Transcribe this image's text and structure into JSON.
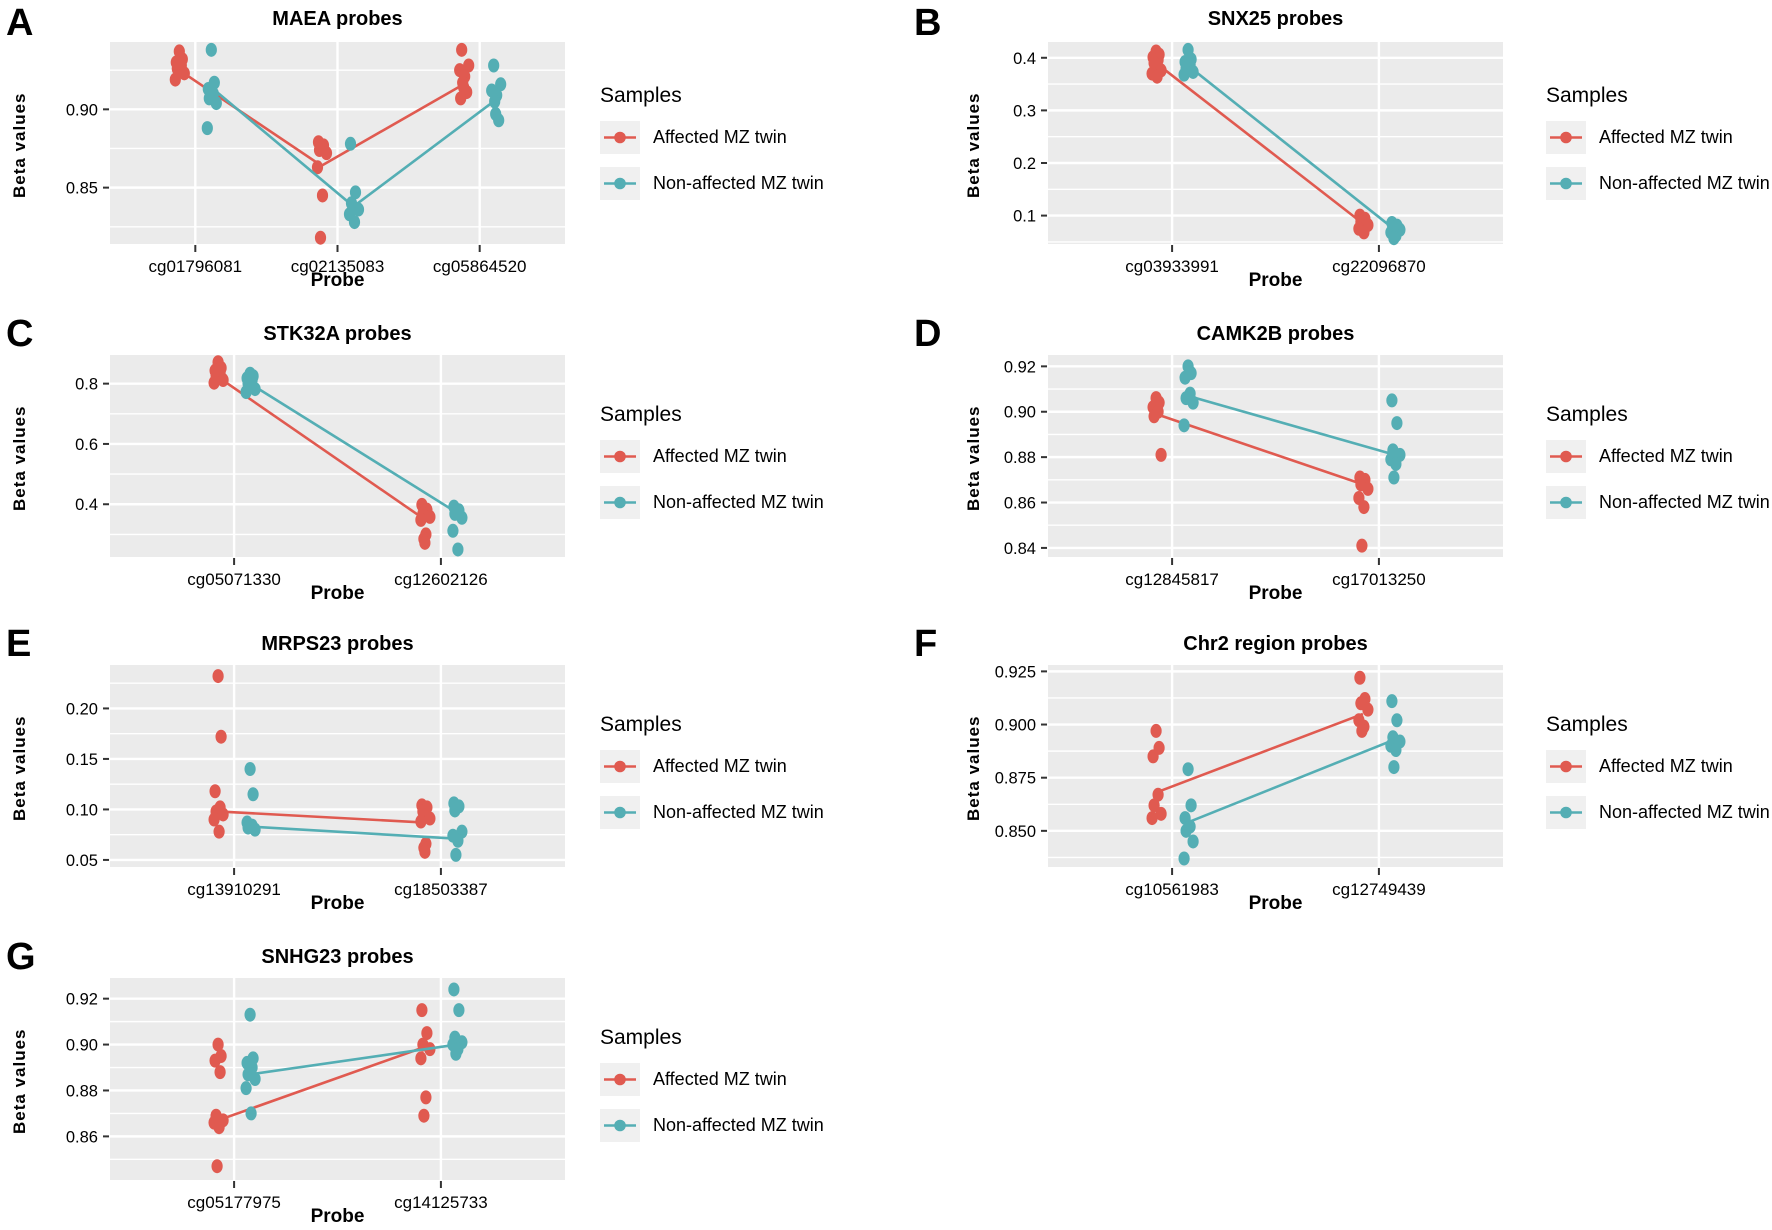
{
  "legend": {
    "title": "Samples",
    "entries": [
      {
        "label": "Affected MZ twin",
        "color": "#E05A50"
      },
      {
        "label": "Non-affected MZ twin",
        "color": "#54AEB4"
      }
    ]
  },
  "style_colors": {
    "plot_background": "#EBEBEB",
    "grid_line": "#FFFFFF",
    "legend_key_background": "#F0F0F0",
    "tick_mark": "#333333"
  },
  "chart_data": [
    {
      "panel_letter": "A",
      "title": "MAEA probes",
      "type": "scatter",
      "xlabel": "Probe",
      "ylabel": "Beta values",
      "legend_position": "right",
      "grid": true,
      "categories": [
        "cg01796081",
        "cg02135083",
        "cg05864520"
      ],
      "ylim": [
        0.814,
        0.943
      ],
      "yticks": [
        0.85,
        0.9
      ],
      "ytick_labels": [
        "0.85",
        "0.90"
      ],
      "series": [
        {
          "name": "Affected MZ twin",
          "color": "#E05A50",
          "points": [
            [
              0.937,
              0.932,
              0.93,
              0.928,
              0.926,
              0.923,
              0.919
            ],
            [
              0.879,
              0.877,
              0.874,
              0.872,
              0.863,
              0.845,
              0.818
            ],
            [
              0.938,
              0.928,
              0.925,
              0.921,
              0.917,
              0.914,
              0.911,
              0.907
            ]
          ],
          "line_means": [
            0.925,
            0.864,
            0.916
          ]
        },
        {
          "name": "Non-affected MZ twin",
          "color": "#54AEB4",
          "points": [
            [
              0.938,
              0.917,
              0.913,
              0.91,
              0.907,
              0.904,
              0.888
            ],
            [
              0.878,
              0.847,
              0.84,
              0.836,
              0.833,
              0.828
            ],
            [
              0.928,
              0.916,
              0.912,
              0.909,
              0.905,
              0.897,
              0.893
            ]
          ],
          "line_means": [
            0.914,
            0.838,
            0.906
          ]
        }
      ]
    },
    {
      "panel_letter": "B",
      "title": "SNX25 probes",
      "type": "scatter",
      "xlabel": "Probe",
      "ylabel": "Beta values",
      "legend_position": "right",
      "grid": true,
      "categories": [
        "cg03933991",
        "cg22096870"
      ],
      "ylim": [
        0.046,
        0.43
      ],
      "yticks": [
        0.1,
        0.2,
        0.3,
        0.4
      ],
      "ytick_labels": [
        "0.1",
        "0.2",
        "0.3",
        "0.4"
      ],
      "series": [
        {
          "name": "Affected MZ twin",
          "color": "#E05A50",
          "points": [
            [
              0.412,
              0.406,
              0.401,
              0.396,
              0.39,
              0.376,
              0.37,
              0.364
            ],
            [
              0.1,
              0.094,
              0.088,
              0.082,
              0.075,
              0.068
            ]
          ],
          "line_means": [
            0.39,
            0.085
          ]
        },
        {
          "name": "Non-affected MZ twin",
          "color": "#54AEB4",
          "points": [
            [
              0.415,
              0.397,
              0.392,
              0.387,
              0.38,
              0.373,
              0.368
            ],
            [
              0.086,
              0.081,
              0.077,
              0.073,
              0.068,
              0.062,
              0.057
            ]
          ],
          "line_means": [
            0.385,
            0.073
          ]
        }
      ]
    },
    {
      "panel_letter": "C",
      "title": "STK32A probes",
      "type": "scatter",
      "xlabel": "Probe",
      "ylabel": "Beta values",
      "legend_position": "right",
      "grid": true,
      "categories": [
        "cg05071330",
        "cg12602126"
      ],
      "ylim": [
        0.225,
        0.895
      ],
      "yticks": [
        0.4,
        0.6,
        0.8
      ],
      "ytick_labels": [
        "0.4",
        "0.6",
        "0.8"
      ],
      "series": [
        {
          "name": "Affected MZ twin",
          "color": "#E05A50",
          "points": [
            [
              0.871,
              0.852,
              0.843,
              0.836,
              0.828,
              0.812,
              0.803
            ],
            [
              0.398,
              0.382,
              0.368,
              0.358,
              0.348,
              0.3,
              0.285,
              0.272
            ]
          ],
          "line_means": [
            0.822,
            0.349
          ]
        },
        {
          "name": "Non-affected MZ twin",
          "color": "#54AEB4",
          "points": [
            [
              0.833,
              0.825,
              0.818,
              0.812,
              0.8,
              0.782,
              0.772
            ],
            [
              0.392,
              0.38,
              0.368,
              0.355,
              0.312,
              0.25
            ]
          ],
          "line_means": [
            0.8,
            0.372
          ]
        }
      ]
    },
    {
      "panel_letter": "D",
      "title": "CAMK2B probes",
      "type": "scatter",
      "xlabel": "Probe",
      "ylabel": "Beta values",
      "legend_position": "right",
      "grid": true,
      "categories": [
        "cg12845817",
        "cg17013250"
      ],
      "ylim": [
        0.836,
        0.925
      ],
      "yticks": [
        0.84,
        0.86,
        0.88,
        0.9,
        0.92
      ],
      "ytick_labels": [
        "0.84",
        "0.86",
        "0.88",
        "0.90",
        "0.92"
      ],
      "series": [
        {
          "name": "Affected MZ twin",
          "color": "#E05A50",
          "points": [
            [
              0.906,
              0.904,
              0.902,
              0.9,
              0.898,
              0.881
            ],
            [
              0.871,
              0.87,
              0.868,
              0.866,
              0.862,
              0.858,
              0.841
            ]
          ],
          "line_means": [
            0.899,
            0.868
          ]
        },
        {
          "name": "Non-affected MZ twin",
          "color": "#54AEB4",
          "points": [
            [
              0.92,
              0.917,
              0.915,
              0.908,
              0.906,
              0.904,
              0.894
            ],
            [
              0.905,
              0.895,
              0.883,
              0.881,
              0.879,
              0.877,
              0.871
            ]
          ],
          "line_means": [
            0.907,
            0.881
          ]
        }
      ]
    },
    {
      "panel_letter": "E",
      "title": "MRPS23 probes",
      "type": "scatter",
      "xlabel": "Probe",
      "ylabel": "Beta values",
      "legend_position": "right",
      "grid": true,
      "categories": [
        "cg13910291",
        "cg18503387"
      ],
      "ylim": [
        0.043,
        0.243
      ],
      "yticks": [
        0.05,
        0.1,
        0.15,
        0.2
      ],
      "ytick_labels": [
        "0.05",
        "0.10",
        "0.15",
        "0.20"
      ],
      "series": [
        {
          "name": "Affected MZ twin",
          "color": "#E05A50",
          "points": [
            [
              0.232,
              0.172,
              0.118,
              0.102,
              0.098,
              0.095,
              0.09,
              0.078
            ],
            [
              0.104,
              0.102,
              0.098,
              0.091,
              0.088,
              0.066,
              0.062,
              0.058
            ]
          ],
          "line_means": [
            0.098,
            0.087
          ]
        },
        {
          "name": "Non-affected MZ twin",
          "color": "#54AEB4",
          "points": [
            [
              0.14,
              0.115,
              0.087,
              0.084,
              0.082,
              0.08
            ],
            [
              0.106,
              0.103,
              0.099,
              0.078,
              0.074,
              0.069,
              0.055
            ]
          ],
          "line_means": [
            0.083,
            0.071
          ]
        }
      ]
    },
    {
      "panel_letter": "F",
      "title": "Chr2 region probes",
      "type": "scatter",
      "xlabel": "Probe",
      "ylabel": "Beta values",
      "legend_position": "right",
      "grid": true,
      "categories": [
        "cg10561983",
        "cg12749439"
      ],
      "ylim": [
        0.833,
        0.928
      ],
      "yticks": [
        0.85,
        0.875,
        0.9,
        0.925
      ],
      "ytick_labels": [
        "0.850",
        "0.875",
        "0.900",
        "0.925"
      ],
      "series": [
        {
          "name": "Affected MZ twin",
          "color": "#E05A50",
          "points": [
            [
              0.897,
              0.889,
              0.885,
              0.867,
              0.862,
              0.858,
              0.856
            ],
            [
              0.922,
              0.912,
              0.91,
              0.907,
              0.902,
              0.899,
              0.897
            ]
          ],
          "line_means": [
            0.868,
            0.905
          ]
        },
        {
          "name": "Non-affected MZ twin",
          "color": "#54AEB4",
          "points": [
            [
              0.879,
              0.862,
              0.856,
              0.852,
              0.85,
              0.845,
              0.837
            ],
            [
              0.911,
              0.902,
              0.894,
              0.892,
              0.89,
              0.888,
              0.88
            ]
          ],
          "line_means": [
            0.854,
            0.893
          ]
        }
      ]
    },
    {
      "panel_letter": "G",
      "title": "SNHG23 probes",
      "type": "scatter",
      "xlabel": "Probe",
      "ylabel": "Beta values",
      "legend_position": "right",
      "grid": true,
      "categories": [
        "cg05177975",
        "cg14125733"
      ],
      "ylim": [
        0.841,
        0.929
      ],
      "yticks": [
        0.86,
        0.88,
        0.9,
        0.92
      ],
      "ytick_labels": [
        "0.86",
        "0.88",
        "0.90",
        "0.92"
      ],
      "series": [
        {
          "name": "Affected MZ twin",
          "color": "#E05A50",
          "points": [
            [
              0.9,
              0.895,
              0.893,
              0.888,
              0.869,
              0.867,
              0.866,
              0.864,
              0.847
            ],
            [
              0.915,
              0.905,
              0.9,
              0.898,
              0.894,
              0.877,
              0.869
            ]
          ],
          "line_means": [
            0.867,
            0.899
          ]
        },
        {
          "name": "Non-affected MZ twin",
          "color": "#54AEB4",
          "points": [
            [
              0.913,
              0.894,
              0.892,
              0.89,
              0.887,
              0.885,
              0.881,
              0.87
            ],
            [
              0.924,
              0.915,
              0.903,
              0.901,
              0.9,
              0.898,
              0.896
            ]
          ],
          "line_means": [
            0.887,
            0.9
          ]
        }
      ]
    }
  ]
}
